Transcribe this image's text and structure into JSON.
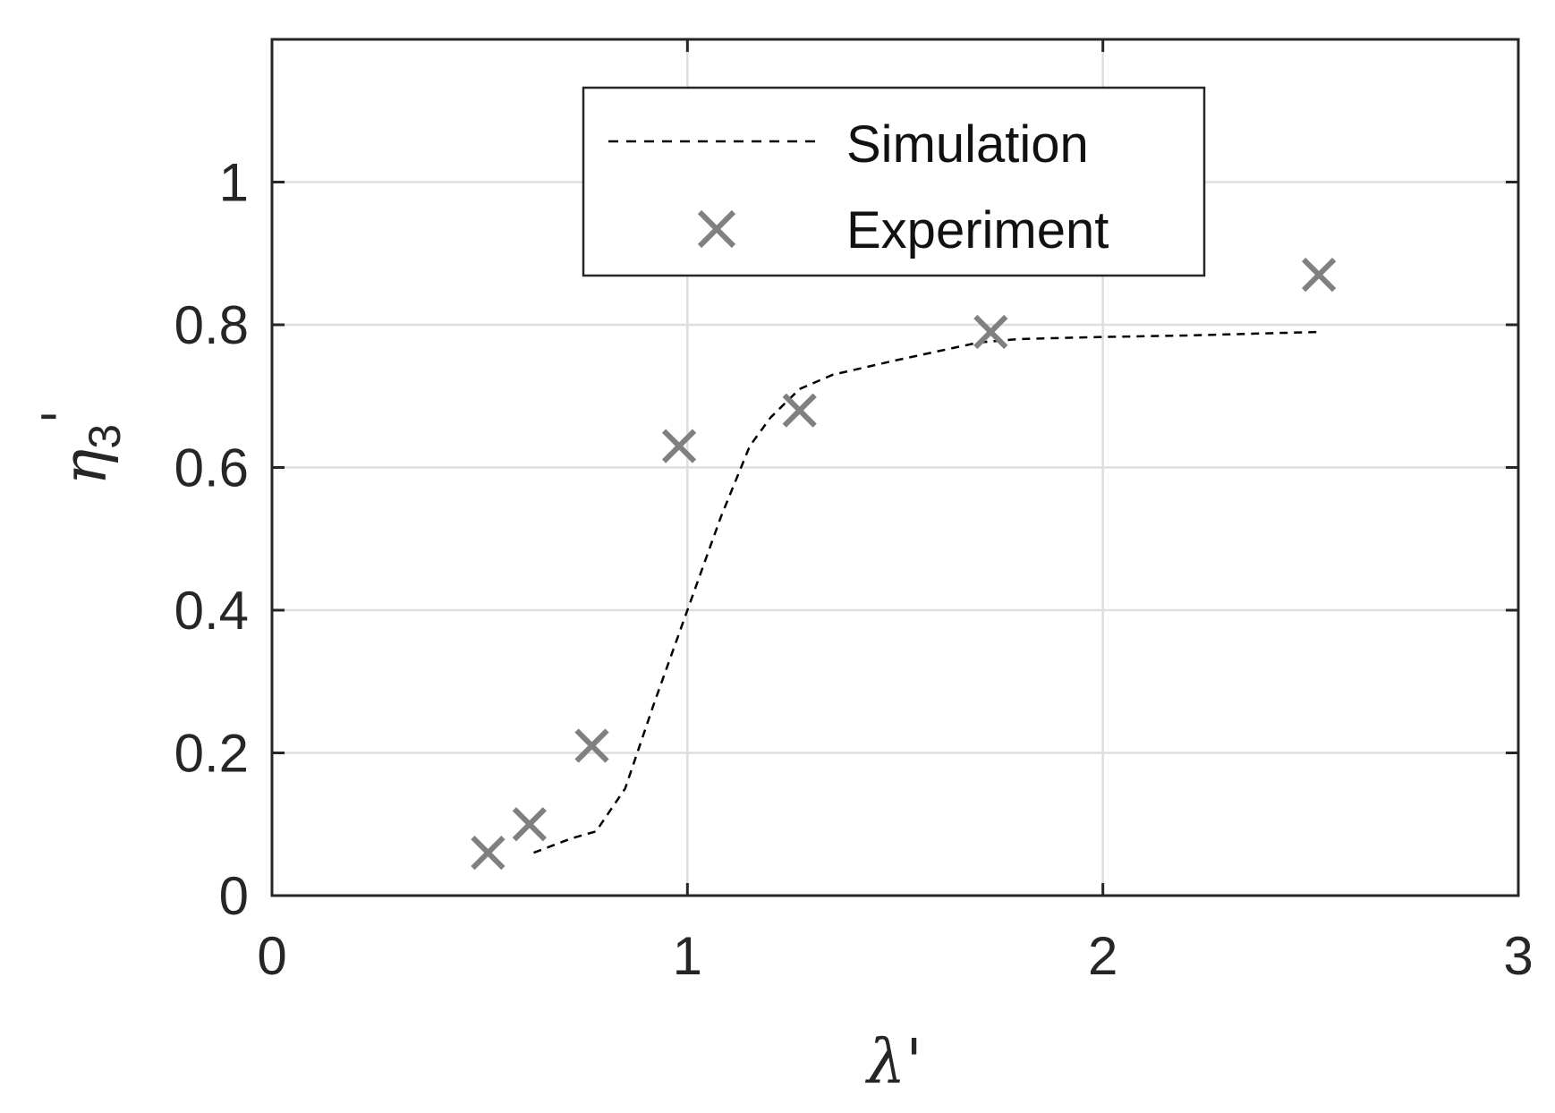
{
  "chart_data": {
    "type": "line",
    "title": "",
    "xlabel": "λ'",
    "ylabel_main": "η",
    "ylabel_sub": "3",
    "ylabel_prime": "'",
    "xlim": [
      0,
      3
    ],
    "ylim": [
      0,
      1.2
    ],
    "xticks": [
      0,
      1,
      2,
      3
    ],
    "xtick_labels": [
      "0",
      "1",
      "2",
      "3"
    ],
    "yticks": [
      0,
      0.2,
      0.4,
      0.6,
      0.8,
      1
    ],
    "ytick_labels": [
      "0",
      "0.2",
      "0.4",
      "0.6",
      "0.8",
      "1"
    ],
    "grid": true,
    "legend_position": "top-center",
    "series": [
      {
        "name": "Simulation",
        "style": "dashed-line",
        "color": "#000000",
        "x": [
          0.63,
          0.72,
          0.78,
          0.85,
          0.92,
          1.0,
          1.08,
          1.15,
          1.2,
          1.27,
          1.35,
          1.5,
          1.7,
          1.8,
          2.0,
          2.2,
          2.52
        ],
        "y": [
          0.06,
          0.08,
          0.09,
          0.15,
          0.27,
          0.4,
          0.53,
          0.63,
          0.67,
          0.71,
          0.73,
          0.75,
          0.775,
          0.78,
          0.783,
          0.785,
          0.79
        ]
      },
      {
        "name": "Experiment",
        "style": "x-marker",
        "color": "#808080",
        "x": [
          0.52,
          0.62,
          0.77,
          0.98,
          1.27,
          1.73,
          2.52
        ],
        "y": [
          0.06,
          0.1,
          0.21,
          0.63,
          0.68,
          0.79,
          0.87
        ]
      }
    ]
  }
}
